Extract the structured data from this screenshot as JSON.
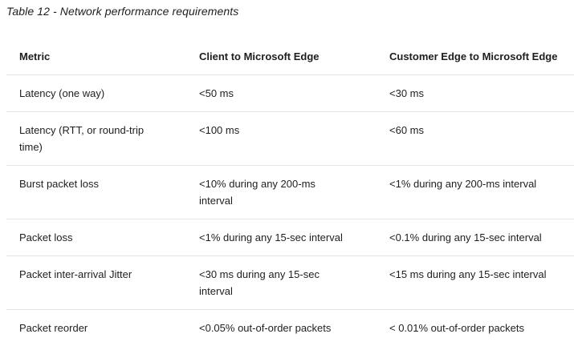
{
  "caption": "Table 12 - Network performance requirements",
  "table": {
    "headers": [
      "Metric",
      "Client to Microsoft Edge",
      "Customer Edge to Microsoft Edge"
    ],
    "rows": [
      [
        "Latency (one way)",
        "<50 ms",
        "<30 ms"
      ],
      [
        "Latency (RTT, or round-trip time)",
        "<100 ms",
        "<60 ms"
      ],
      [
        "Burst packet loss",
        "<10% during any 200-ms interval",
        "<1% during any 200-ms interval"
      ],
      [
        "Packet loss",
        "<1% during any 15-sec interval",
        "<0.1% during any 15-sec interval"
      ],
      [
        "Packet inter-arrival Jitter",
        "<30 ms during any 15-sec interval",
        "<15 ms during any 15-sec interval"
      ],
      [
        "Packet reorder",
        "<0.05% out-of-order packets",
        "< 0.01% out-of-order packets"
      ]
    ]
  }
}
